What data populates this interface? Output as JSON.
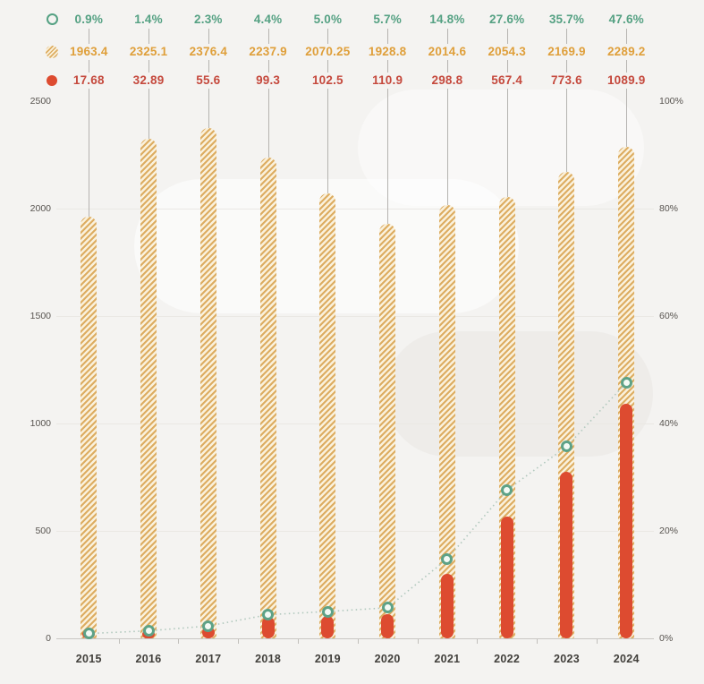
{
  "chart_data": {
    "type": "combo-bar-line",
    "categories": [
      "2015",
      "2016",
      "2017",
      "2018",
      "2019",
      "2020",
      "2021",
      "2022",
      "2023",
      "2024"
    ],
    "series": [
      {
        "name": "share-percent-line",
        "type": "line",
        "axis": "percent",
        "line_style": "dotted",
        "marker": "ring",
        "color": "#55a183",
        "values": [
          0.9,
          1.4,
          2.3,
          4.4,
          5.0,
          5.7,
          14.8,
          27.6,
          35.7,
          47.6
        ],
        "labels": [
          "0.9%",
          "1.4%",
          "2.3%",
          "4.4%",
          "5.0%",
          "5.7%",
          "14.8%",
          "27.6%",
          "35.7%",
          "47.6%"
        ]
      },
      {
        "name": "hatched-total-bar",
        "type": "bar",
        "axis": "value",
        "style": "hatched",
        "color": "#df9f3a",
        "values": [
          1963.4,
          2325.1,
          2376.4,
          2237.9,
          2070.25,
          1928.8,
          2014.6,
          2054.3,
          2169.9,
          2289.2
        ],
        "labels": [
          "1963.4",
          "2325.1",
          "2376.4",
          "2237.9",
          "2070.25",
          "1928.8",
          "2014.6",
          "2054.3",
          "2169.9",
          "2289.2"
        ]
      },
      {
        "name": "solid-red-bar",
        "type": "bar",
        "axis": "value",
        "style": "solid",
        "color": "#c5493d",
        "values": [
          17.68,
          32.89,
          55.6,
          99.3,
          102.5,
          110.9,
          298.8,
          567.4,
          773.6,
          1089.9
        ],
        "labels": [
          "17.68",
          "32.89",
          "55.6",
          "99.3",
          "102.5",
          "110.9",
          "298.8",
          "567.4",
          "773.6",
          "1089.9"
        ]
      }
    ],
    "value_axis": {
      "side": "left",
      "min": 0,
      "max": 2500,
      "ticks": [
        "2500",
        "2000",
        "1500",
        "1000",
        "500",
        "0"
      ]
    },
    "percent_axis": {
      "side": "right",
      "min": 0,
      "max": 100,
      "ticks": [
        "100%",
        "80%",
        "60%",
        "40%",
        "20%",
        "0%"
      ]
    },
    "legend_position": "top-table",
    "grid": "faint-horizontal",
    "title": "",
    "xlabel": "",
    "ylabel": ""
  },
  "colors": {
    "background": "#f4f3f1",
    "green_text": "#55a183",
    "orange_text": "#df9f3a",
    "red_text": "#c5493d",
    "bar_red": "#dd4b30",
    "hatch_stripe": "#ddad62",
    "hatch_bg": "#faf1dc",
    "marker_ring": "#5da287",
    "dotted_line": "#b0c8bd"
  },
  "legend_icons": [
    "ring-icon",
    "hatched-dot-icon",
    "red-dot-icon"
  ]
}
